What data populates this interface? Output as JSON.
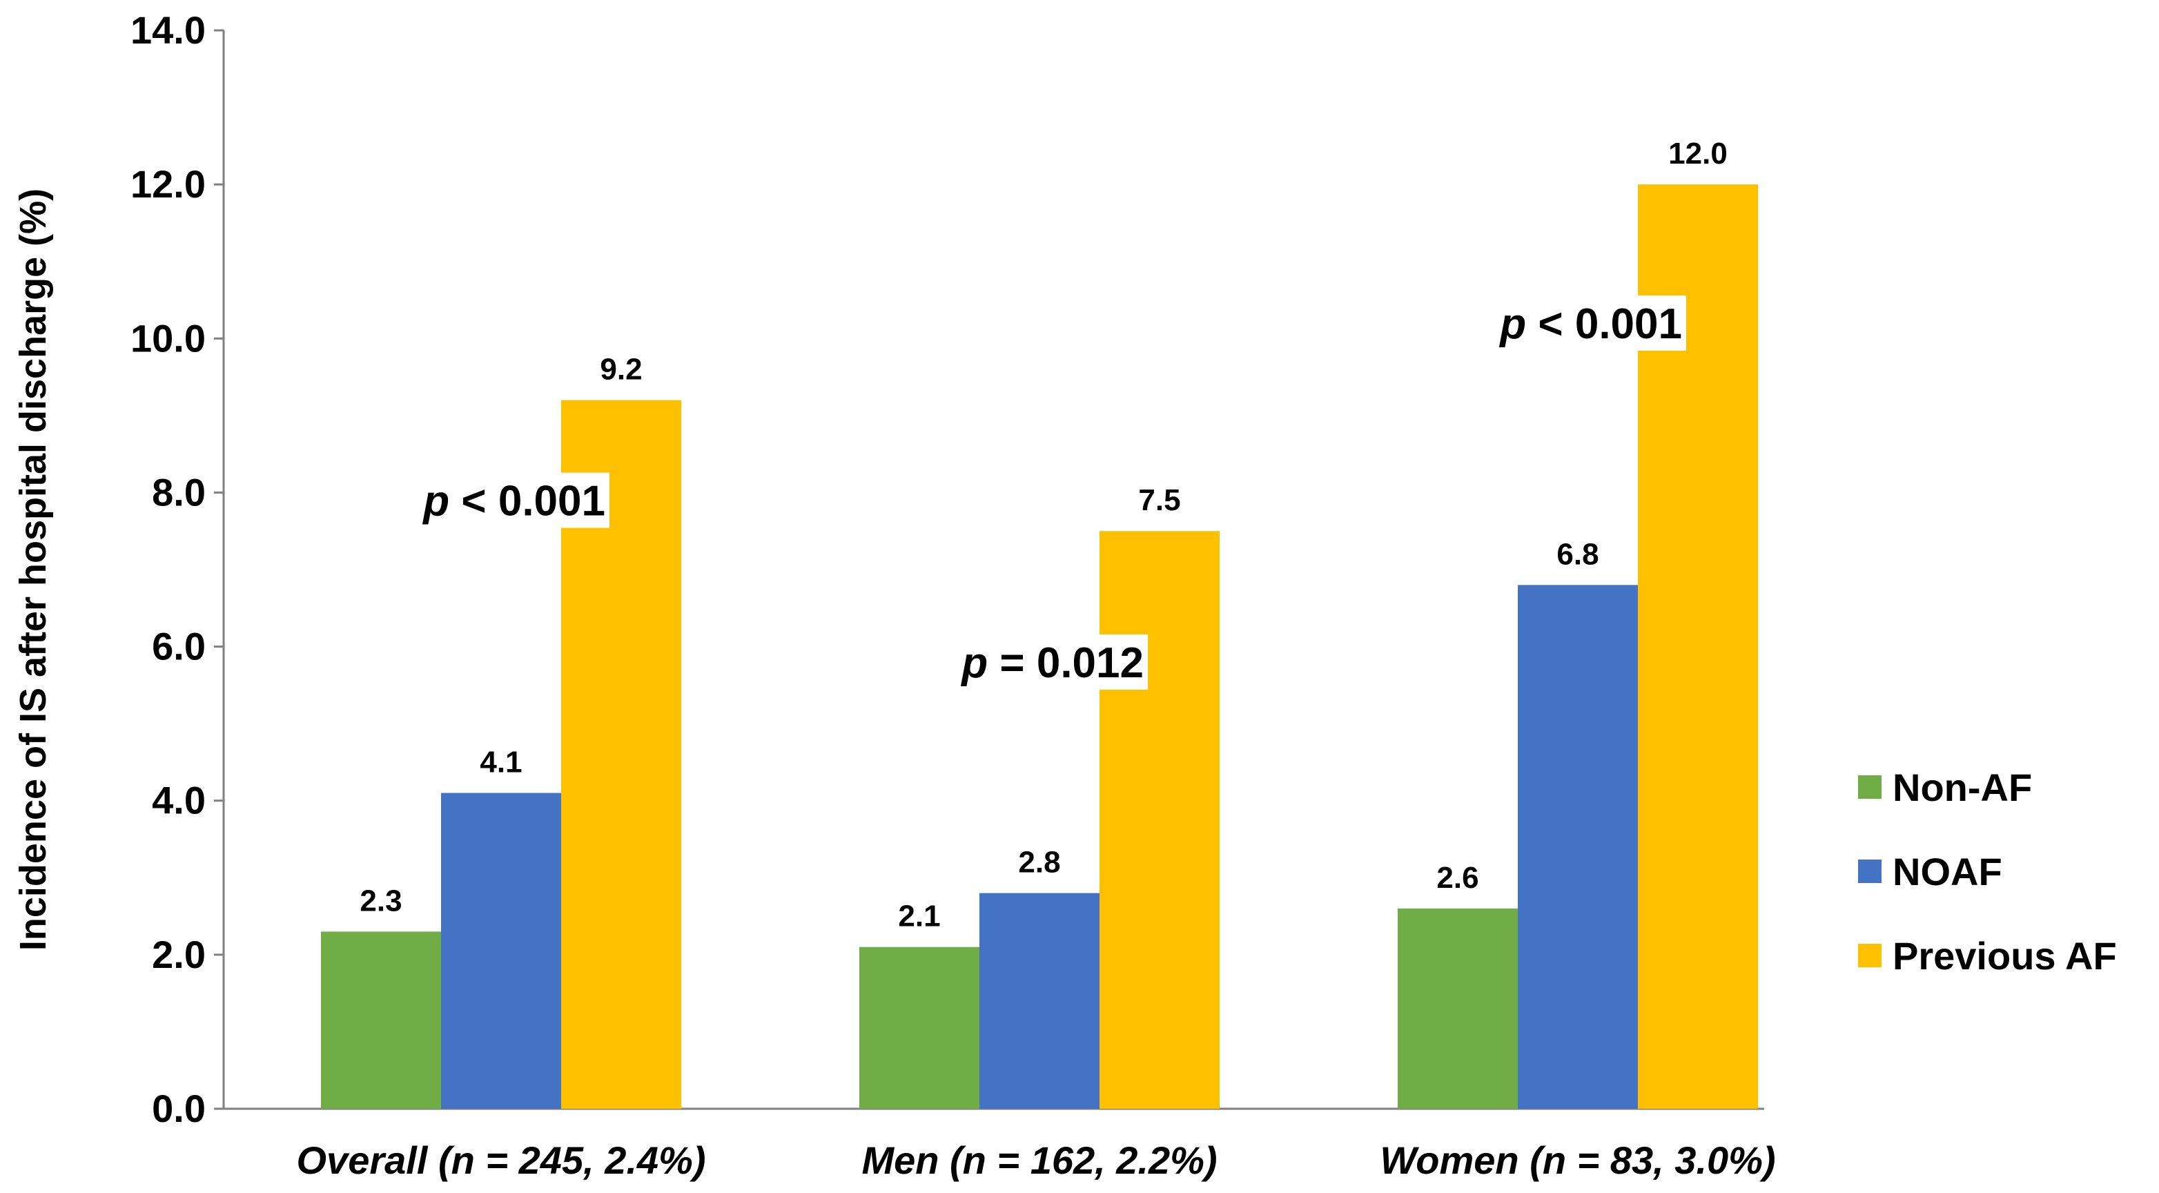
{
  "chart_data": {
    "type": "bar",
    "title": "",
    "xlabel": "",
    "ylabel": "Incidence of IS after hospital discharge  (%)",
    "ylim": [
      0,
      14
    ],
    "yticks": [
      "0.0",
      "2.0",
      "4.0",
      "6.0",
      "8.0",
      "10.0",
      "12.0",
      "14.0"
    ],
    "grid": false,
    "legend_position": "right",
    "categories": [
      {
        "prefix": "Overall ",
        "detail": "(n = 245, 2.4%)"
      },
      {
        "prefix": "Men ",
        "detail": "(n = 162, 2.2%)"
      },
      {
        "prefix": "Women ",
        "detail": "(n = 83, 3.0%)"
      }
    ],
    "series": [
      {
        "name": "Non-AF",
        "color": "#70ad47",
        "values": [
          2.3,
          2.1,
          2.6
        ],
        "labels": [
          "2.3",
          "2.1",
          "2.6"
        ]
      },
      {
        "name": "NOAF",
        "color": "#4472c4",
        "values": [
          4.1,
          2.8,
          6.8
        ],
        "labels": [
          "4.1",
          "2.8",
          "6.8"
        ]
      },
      {
        "name": "Previous AF",
        "color": "#ffc000",
        "values": [
          9.2,
          7.5,
          12.0
        ],
        "labels": [
          "9.2",
          "7.5",
          "12.0"
        ]
      }
    ],
    "annotations": [
      {
        "category_index": 0,
        "p": "p",
        "relation": "<",
        "value": "0.001",
        "y": 7.9
      },
      {
        "category_index": 1,
        "p": "p",
        "relation": "=",
        "value": "0.012",
        "y": 5.8
      },
      {
        "category_index": 2,
        "p": "p",
        "relation": "<",
        "value": "0.001",
        "y": 10.2
      }
    ]
  }
}
